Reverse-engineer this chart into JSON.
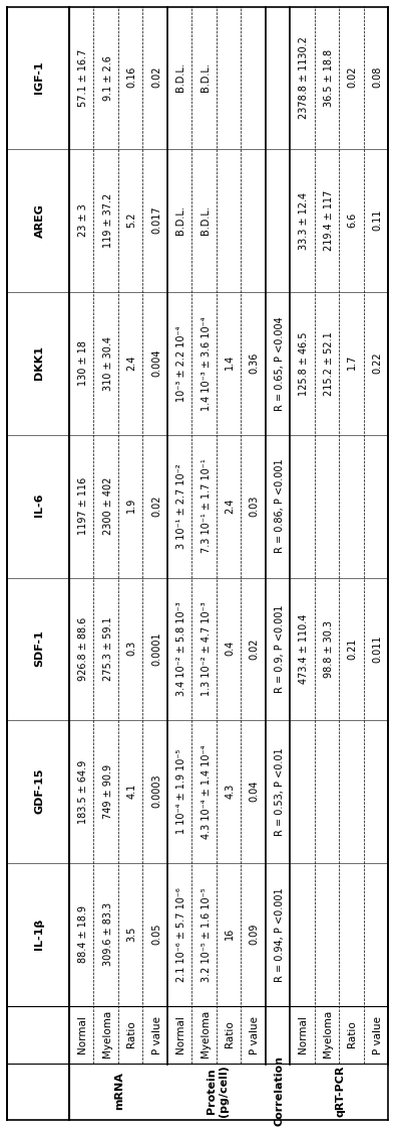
{
  "columns": [
    "IL-1β",
    "GDF-15",
    "SDF-1",
    "IL-6",
    "DKK1",
    "AREG",
    "IGF-1"
  ],
  "row_groups": [
    {
      "group_label": "mRNA",
      "rows": [
        {
          "label": "Normal",
          "values": [
            "88.4 ± 18.9",
            "183.5 ± 64.9",
            "926.8 ± 88.6",
            "1197 ± 116",
            "130 ± 18",
            "23 ± 3",
            "57.1 ± 16.7"
          ]
        },
        {
          "label": "Myeloma",
          "values": [
            "309.6 ± 83.3",
            "749 ± 90.9",
            "275.3 ± 59.1",
            "2300 ± 402",
            "310 ± 30.4",
            "119 ± 37.2",
            "9.1 ± 2.6"
          ]
        },
        {
          "label": "Ratio",
          "values": [
            "3.5",
            "4.1",
            "0.3",
            "1.9",
            "2.4",
            "5.2",
            "0.16"
          ]
        },
        {
          "label": "P value",
          "values": [
            "0.05",
            "0.0003",
            "0.0001",
            "0.02",
            "0.004",
            "0.017",
            "0.02"
          ]
        }
      ]
    },
    {
      "group_label": "Protein\n(pg/cell)",
      "rows": [
        {
          "label": "Normal",
          "values": [
            "2.1 10⁻⁶ ± 5.7 10⁻⁶",
            "1 10⁻⁴ ± 1.9 10⁻⁵",
            "3.4 10⁻² ± 5.8 10⁻³",
            "3 10⁻¹ ± 2.7 10⁻²",
            "10⁻³ ± 2.2 10⁻⁴",
            "B.D.L.",
            "B.D.L."
          ]
        },
        {
          "label": "Myeloma",
          "values": [
            "3.2 10⁻⁵ ± 1.6 10⁻⁵",
            "4.3 10⁻⁴ ± 1.4 10⁻⁴",
            "1.3 10⁻² ± 4.7 10⁻³",
            "7.3 10⁻¹ ± 1.7 10⁻¹",
            "1.4 10⁻³ ± 3.6 10⁻⁴",
            "B.D.L.",
            "B.D.L."
          ]
        },
        {
          "label": "Ratio",
          "values": [
            "16",
            "4.3",
            "0.4",
            "2.4",
            "1.4",
            "",
            ""
          ]
        },
        {
          "label": "P value",
          "values": [
            "0.09",
            "0.04",
            "0.02",
            "0.03",
            "0.36",
            "",
            ""
          ]
        }
      ]
    },
    {
      "group_label": "Correlation",
      "rows": [
        {
          "label": "",
          "values": [
            "R = 0.94, P <0.001",
            "R = 0.53, P <0.01",
            "R = 0.9, P <0.001",
            "R = 0.86, P <0.001",
            "R = 0.65, P <0.004",
            "",
            ""
          ]
        }
      ]
    },
    {
      "group_label": "qRT-PCR",
      "rows": [
        {
          "label": "Normal",
          "values": [
            "",
            "",
            "473.4 ± 110.4",
            "",
            "125.8 ± 46.5",
            "33.3 ± 12.4",
            "2378.8 ± 1130.2"
          ]
        },
        {
          "label": "Myeloma",
          "values": [
            "",
            "",
            "98.8 ± 30.3",
            "",
            "215.2 ± 52.1",
            "219.4 ± 117",
            "36.5 ± 18.8"
          ]
        },
        {
          "label": "Ratio",
          "values": [
            "",
            "",
            "0.21",
            "",
            "1.7",
            "6.6",
            "0.02"
          ]
        },
        {
          "label": "P value",
          "values": [
            "",
            "",
            "0.011",
            "",
            "0.22",
            "0.11",
            "0.08"
          ]
        }
      ]
    }
  ],
  "bg_color": "#ffffff",
  "text_color": "#000000",
  "line_color": "#000000",
  "font_size": 7.5,
  "header_font_size": 8.0,
  "group_font_size": 8.0
}
